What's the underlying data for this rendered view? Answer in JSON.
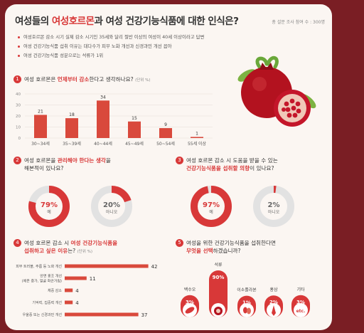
{
  "header": {
    "title_pre": "여성들의 ",
    "title_hl": "여성호르몬",
    "title_post": "과 여성 건강기능식품에 대한 인식은?",
    "respondents": "총 설문 조사 참여 수 : 300명"
  },
  "bullets": [
    "여성호르몬 감소 시기 실제 감소 시기인 35세와 달리 절반 이상의 여성이 40세 이상이라고 답변",
    "여성 건강기능식품 섭취 이유는 대다수가 피부 노화 개선과 신경과민 개선 꼽아",
    "여성 건강기능식품 성분으로는 석류가 1위"
  ],
  "q1": {
    "num": "1",
    "pre": "여성 호르몬은 ",
    "hl": "언제부터 감소",
    "post": "한다고 생각하나요?",
    "unit": "(단위 %)"
  },
  "q2": {
    "num": "2",
    "pre": "여성 호르몬을 ",
    "hl": "관리해야 한다는 생각",
    "post": "을",
    "line2": "해본적이 있나요?"
  },
  "q3": {
    "num": "3",
    "line1": "여성 호르몬 감소 시 도움을 받을 수 있는",
    "hl": "건강기능식품을 섭취할 의향",
    "post": "이 있나요?"
  },
  "q4": {
    "num": "4",
    "pre": "여성 호르몬 감소 시 ",
    "hl1": "여성 건강기능식품을",
    "hl2": "섭취하고 싶은 이유",
    "post": "는?",
    "unit": "(단위 %)"
  },
  "q5": {
    "num": "5",
    "line1": "여성을 위한 건강기능식품을 섭취한다면",
    "hl": "무엇을 선택",
    "post": "하겠습니까?"
  },
  "colors": {
    "accent": "#d83838",
    "donut_bg": "#e2e2e2",
    "bar": "#d9493c"
  },
  "icons": {
    "q5": [
      "sweet-potato-icon",
      "pomegranate-icon",
      "isoflavone-bean-icon",
      "red-ginseng-icon",
      "etc-icon"
    ]
  },
  "chart_data": [
    {
      "type": "bar",
      "categories": [
        "30~34세",
        "35~39세",
        "40~44세",
        "45~49세",
        "50~54세",
        "55세 이상"
      ],
      "values": [
        21,
        18,
        34,
        15,
        9,
        1
      ],
      "ylim": [
        0,
        40
      ],
      "yticks": [
        0,
        10,
        20,
        30,
        40
      ],
      "grid": true
    },
    {
      "type": "pie",
      "series": [
        {
          "label": "예",
          "value": 79,
          "text": "79%"
        },
        {
          "label": "아니오",
          "value": 20,
          "text": "20%"
        }
      ]
    },
    {
      "type": "pie",
      "series": [
        {
          "label": "예",
          "value": 97,
          "text": "97%"
        },
        {
          "label": "아니오",
          "value": 2,
          "text": "2%"
        }
      ]
    },
    {
      "type": "bar",
      "orientation": "horizontal",
      "categories": [
        [
          "피부 트러블, 주름 등 노화 개선"
        ],
        [
          "안면 홍조 개선",
          "(체온 증가, 얼굴 화끈거림)"
        ],
        [
          "체중 감소"
        ],
        [
          "기억력, 집중력 개선"
        ],
        [
          "우울증 또는 신경과민 개선"
        ]
      ],
      "values": [
        42,
        11,
        4,
        4,
        37
      ],
      "xlim": [
        0,
        45
      ]
    },
    {
      "type": "bar",
      "categories": [
        "백수오",
        "석류",
        "이소플라본",
        "홍삼",
        "기타"
      ],
      "values": [
        3,
        90,
        1,
        2,
        3
      ],
      "labels": [
        "3%",
        "90%",
        "1%",
        "2%",
        "3%"
      ],
      "etc_label": "etc."
    }
  ]
}
